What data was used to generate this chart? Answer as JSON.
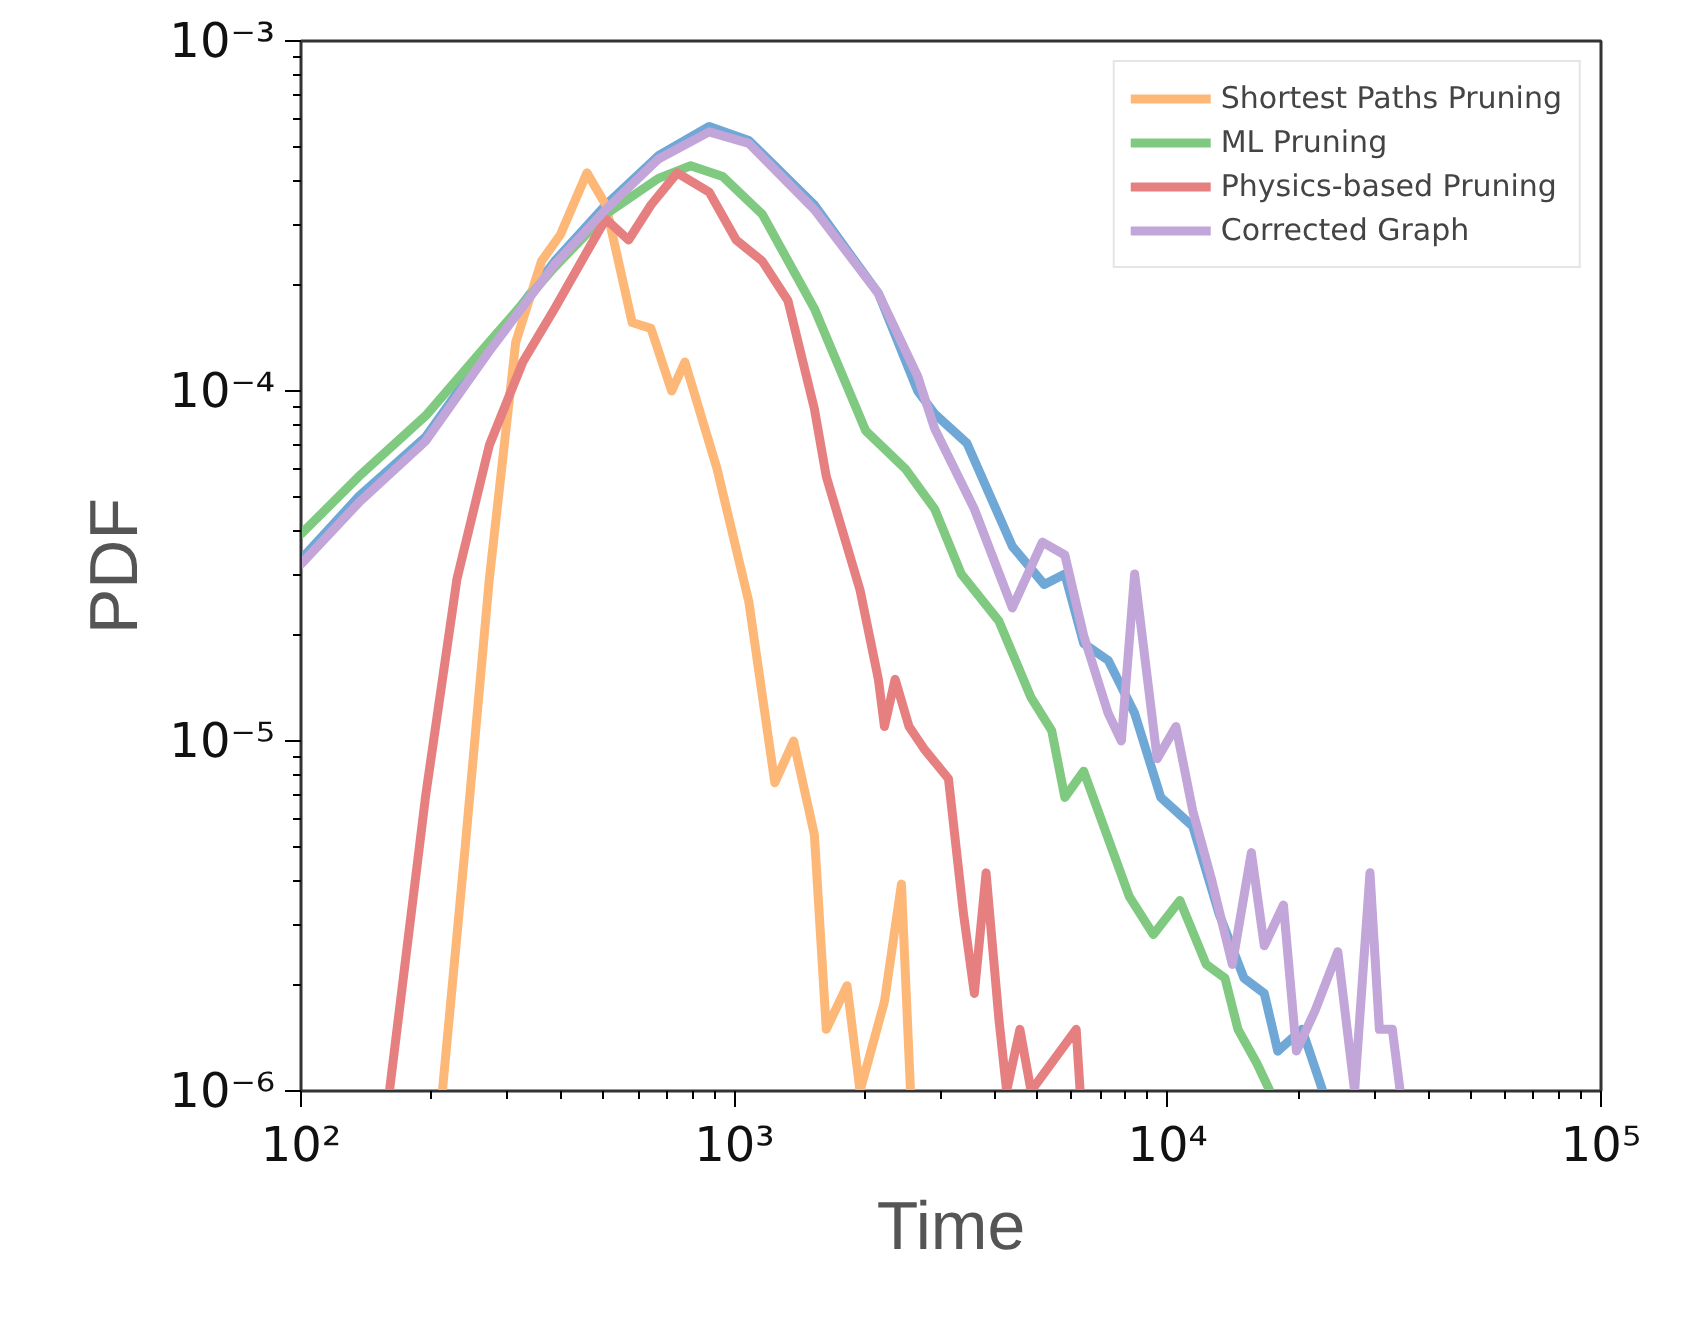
{
  "chart_data": {
    "type": "line",
    "xlabel": "Time",
    "ylabel": "PDF",
    "log": "xy",
    "grid": false,
    "legend": "top right",
    "line_style": "solid",
    "xlim": [
      100,
      100000
    ],
    "ylim": [
      1e-06,
      0.001
    ],
    "xticks": [
      {
        "value": 100,
        "label": "10²"
      },
      {
        "value": 1000,
        "label": "10³"
      },
      {
        "value": 10000,
        "label": "10⁴"
      },
      {
        "value": 100000,
        "label": "10⁵"
      }
    ],
    "yticks": [
      {
        "value": 1e-06,
        "label": "10⁻⁶"
      },
      {
        "value": 1e-05,
        "label": "10⁻⁵"
      },
      {
        "value": 0.0001,
        "label": "10⁻⁴"
      },
      {
        "value": 0.001,
        "label": "10⁻³"
      }
    ],
    "series": [
      {
        "color": "#6fa8d6",
        "x": [
          100,
          136,
          194,
          272,
          385,
          505,
          668,
          875,
          1080,
          1530,
          2150,
          2650,
          2900,
          3440,
          4380,
          5190,
          5790,
          6400,
          7290,
          8390,
          9640,
          11430,
          13150,
          15000,
          16710,
          17950,
          20420,
          22800
        ],
        "values": [
          3.3e-05,
          5e-05,
          7.4e-05,
          0.000133,
          0.000235,
          0.00034,
          0.00047,
          0.00057,
          0.00052,
          0.00034,
          0.00019,
          0.0001,
          8.6e-05,
          7.1e-05,
          3.6e-05,
          2.8e-05,
          3e-05,
          1.9e-05,
          1.7e-05,
          1.2e-05,
          6.9e-06,
          5.7e-06,
          3.2e-06,
          2.1e-06,
          1.9e-06,
          1.3e-06,
          1.5e-06,
          1e-06
        ]
      },
      {
        "name": "Shortest Paths Pruning",
        "color": "#fdb878",
        "x": [
          212,
          239,
          272,
          313,
          359,
          397,
          457,
          505,
          581,
          642,
          717,
          769,
          912,
          1080,
          1240,
          1370,
          1530,
          1630,
          1820,
          1950,
          2220,
          2430,
          2550
        ],
        "values": [
          1e-06,
          4.9e-06,
          2.9e-05,
          0.000138,
          0.000235,
          0.00028,
          0.00042,
          0.00034,
          0.000157,
          0.000151,
          0.0001,
          0.000121,
          6e-05,
          2.5e-05,
          7.6e-06,
          1e-05,
          5.4e-06,
          1.5e-06,
          2e-06,
          1e-06,
          1.8e-06,
          3.9e-06,
          1e-06
        ]
      },
      {
        "name": "ML Pruning",
        "color": "#80c980",
        "x": [
          100,
          136,
          194,
          272,
          385,
          505,
          668,
          793,
          940,
          1160,
          1530,
          2010,
          2480,
          2900,
          3340,
          4080,
          4840,
          5400,
          5790,
          6400,
          8150,
          9270,
          10670,
          12270,
          13560,
          14530,
          16060,
          17220
        ],
        "values": [
          3.9e-05,
          5.7e-05,
          8.5e-05,
          0.000138,
          0.000226,
          0.00032,
          0.000405,
          0.00044,
          0.00041,
          0.00032,
          0.000172,
          7.7e-05,
          6e-05,
          4.6e-05,
          3e-05,
          2.2e-05,
          1.33e-05,
          1.07e-05,
          6.9e-06,
          8.2e-06,
          3.6e-06,
          2.8e-06,
          3.5e-06,
          2.3e-06,
          2.1e-06,
          1.5e-06,
          1.2e-06,
          1e-06
        ]
      },
      {
        "name": "Physics-based Pruning",
        "color": "#e68080",
        "x": [
          160,
          194,
          229,
          272,
          325,
          385,
          457,
          505,
          570,
          642,
          738,
          875,
          1010,
          1160,
          1330,
          1530,
          1630,
          1950,
          2150,
          2220,
          2350,
          2530,
          2740,
          3120,
          3380,
          3580,
          3810,
          4080,
          4250,
          4560,
          4840,
          6150,
          6280
        ],
        "values": [
          1e-06,
          7e-06,
          2.9e-05,
          7e-05,
          0.000121,
          0.000172,
          0.00025,
          0.00031,
          0.00027,
          0.00034,
          0.00042,
          0.00037,
          0.00027,
          0.000235,
          0.000181,
          8.9e-05,
          5.7e-05,
          2.7e-05,
          1.5e-05,
          1.1e-05,
          1.5e-05,
          1.1e-05,
          9.5e-06,
          7.8e-06,
          3.2e-06,
          1.9e-06,
          4.2e-06,
          1.6e-06,
          1e-06,
          1.5e-06,
          1e-06,
          1.5e-06,
          1e-06
        ]
      },
      {
        "name": "Corrected Graph",
        "color": "#c2a5d9",
        "x": [
          100,
          136,
          194,
          272,
          385,
          505,
          668,
          875,
          1080,
          1530,
          2150,
          2650,
          2900,
          3580,
          4380,
          5140,
          5790,
          6400,
          7290,
          7820,
          8390,
          9460,
          10450,
          11430,
          12640,
          14100,
          15600,
          16710,
          18500,
          19820,
          21900,
          24700,
          27000,
          29300,
          30800,
          33000,
          34400
        ],
        "values": [
          3.2e-05,
          4.8e-05,
          7.2e-05,
          0.00013,
          0.00023,
          0.00033,
          0.00046,
          0.00055,
          0.00051,
          0.00033,
          0.00019,
          0.00011,
          7.8e-05,
          4.6e-05,
          2.4e-05,
          3.7e-05,
          3.4e-05,
          2e-05,
          1.2e-05,
          1e-05,
          3e-05,
          8.9e-06,
          1.1e-05,
          6.3e-06,
          4e-06,
          2.3e-06,
          4.8e-06,
          2.6e-06,
          3.4e-06,
          1.3e-06,
          1.7e-06,
          2.5e-06,
          1e-06,
          4.2e-06,
          1.5e-06,
          1.5e-06,
          1e-06
        ]
      }
    ]
  }
}
